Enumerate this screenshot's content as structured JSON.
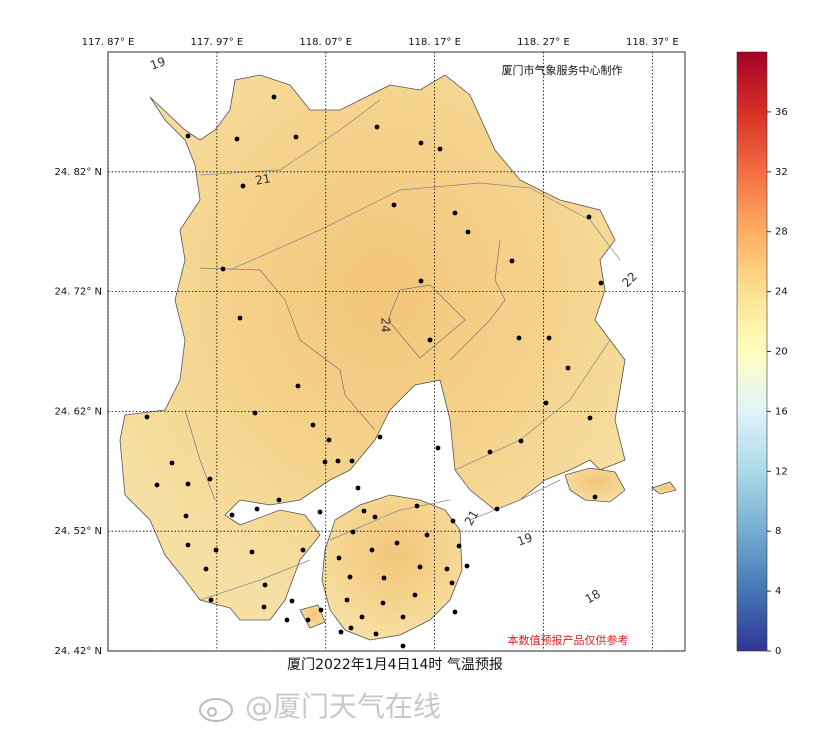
{
  "map": {
    "title": "厦门2022年1月4日14时 气温预报",
    "credit": "厦门市气象服务中心制作",
    "disclaimer": "本数值预报产品仅供参考",
    "watermark": "@厦门天气在线",
    "xlim": [
      117.87,
      118.4
    ],
    "ylim": [
      24.42,
      24.92
    ],
    "xticks": [
      {
        "value": 117.87,
        "label": "117. 87° E"
      },
      {
        "value": 117.97,
        "label": "117. 97° E"
      },
      {
        "value": 118.07,
        "label": "118. 07° E"
      },
      {
        "value": 118.17,
        "label": "118. 17° E"
      },
      {
        "value": 118.27,
        "label": "118. 27° E"
      },
      {
        "value": 118.37,
        "label": "118. 37° E"
      }
    ],
    "yticks": [
      {
        "value": 24.42,
        "label": "24. 42° N"
      },
      {
        "value": 24.52,
        "label": "24. 52° N"
      },
      {
        "value": 24.62,
        "label": "24. 62° N"
      },
      {
        "value": 24.72,
        "label": "24. 72° N"
      },
      {
        "value": 24.82,
        "label": "24. 82° N"
      }
    ],
    "contour_labels": [
      19,
      21,
      24,
      22,
      21,
      19,
      18
    ],
    "colorbar": {
      "clim": [
        0,
        40
      ],
      "ticks": [
        0,
        4,
        8,
        12,
        16,
        20,
        24,
        28,
        32,
        36
      ]
    }
  }
}
